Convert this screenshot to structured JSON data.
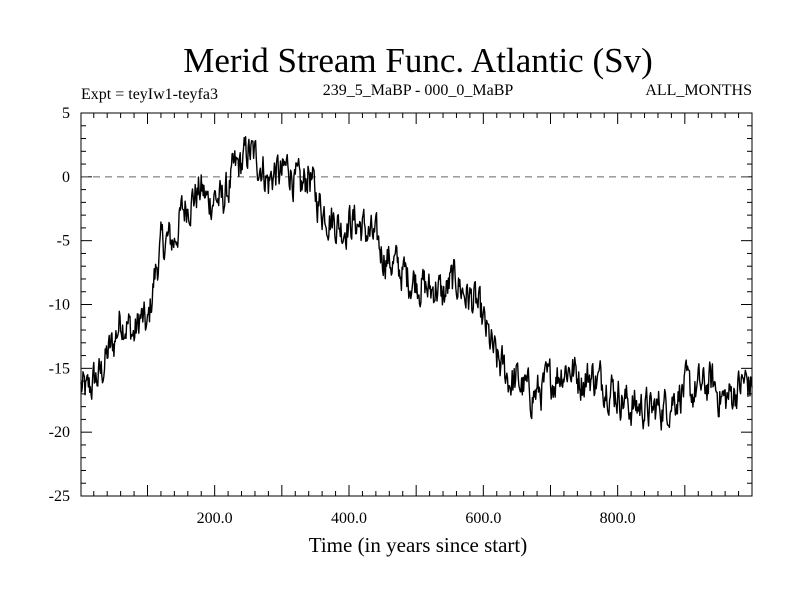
{
  "chart_data": {
    "type": "line",
    "title": "Merid Stream Func. Atlantic (Sv)",
    "subtitle_left": "Expt = teyIw1-teyfa3",
    "subtitle_center": "239_5_MaBP - 000_0_MaBP",
    "subtitle_right": "ALL_MONTHS",
    "xlabel": "Time (in years since start)",
    "ylabel": "",
    "xlim": [
      1,
      1000
    ],
    "ylim": [
      -25,
      5
    ],
    "xticks": [
      200,
      400,
      600,
      800
    ],
    "xtick_labels": [
      "200.0",
      "400.0",
      "600.0",
      "800.0"
    ],
    "yticks": [
      5,
      0,
      -5,
      -10,
      -15,
      -20,
      -25
    ],
    "ytick_labels": [
      "5",
      "0",
      "-5",
      "-10",
      "-15",
      "-20",
      "-25"
    ],
    "reference_line": {
      "y": 0,
      "style": "dashed"
    },
    "series": [
      {
        "name": "Merid Stream Func. Atlantic",
        "x": [
          1,
          10,
          20,
          30,
          40,
          50,
          60,
          70,
          80,
          90,
          100,
          110,
          120,
          130,
          140,
          150,
          160,
          170,
          180,
          190,
          200,
          210,
          220,
          230,
          240,
          250,
          260,
          270,
          280,
          290,
          300,
          310,
          320,
          330,
          340,
          350,
          360,
          370,
          380,
          390,
          400,
          410,
          420,
          430,
          440,
          450,
          460,
          470,
          480,
          490,
          500,
          510,
          520,
          530,
          540,
          550,
          560,
          570,
          580,
          590,
          600,
          610,
          620,
          630,
          640,
          650,
          660,
          670,
          680,
          690,
          700,
          710,
          720,
          730,
          740,
          750,
          760,
          770,
          780,
          790,
          800,
          810,
          820,
          830,
          840,
          850,
          860,
          870,
          880,
          890,
          900,
          910,
          920,
          930,
          940,
          950,
          960,
          970,
          980,
          990,
          1000
        ],
        "values": [
          -16.5,
          -17.0,
          -16.0,
          -15.5,
          -14.0,
          -13.0,
          -11.0,
          -11.5,
          -12.5,
          -11.0,
          -12.0,
          -8.0,
          -5.5,
          -5.0,
          -5.0,
          -3.0,
          -2.0,
          -1.5,
          -1.0,
          -2.0,
          -1.5,
          -2.0,
          -1.0,
          0.5,
          1.0,
          2.0,
          1.5,
          1.0,
          -0.5,
          0.5,
          0.0,
          1.0,
          -0.5,
          -1.0,
          0.5,
          -1.5,
          -2.5,
          -3.0,
          -3.5,
          -4.0,
          -3.5,
          -3.5,
          -4.0,
          -4.5,
          -5.0,
          -6.0,
          -6.5,
          -7.0,
          -7.5,
          -8.0,
          -8.0,
          -8.5,
          -9.0,
          -8.5,
          -9.5,
          -8.5,
          -8.0,
          -9.0,
          -9.5,
          -10.0,
          -11.5,
          -13.0,
          -14.5,
          -15.0,
          -16.0,
          -16.0,
          -16.5,
          -17.0,
          -17.0,
          -16.5,
          -16.0,
          -15.5,
          -15.0,
          -15.0,
          -15.5,
          -16.0,
          -15.5,
          -16.0,
          -16.0,
          -16.5,
          -17.0,
          -17.5,
          -18.0,
          -18.0,
          -18.0,
          -18.5,
          -18.0,
          -18.0,
          -17.5,
          -17.0,
          -16.5,
          -17.0,
          -16.5,
          -16.5,
          -16.0,
          -17.0,
          -17.5,
          -17.0,
          -16.5,
          -16.0,
          -16.5
        ]
      }
    ]
  }
}
